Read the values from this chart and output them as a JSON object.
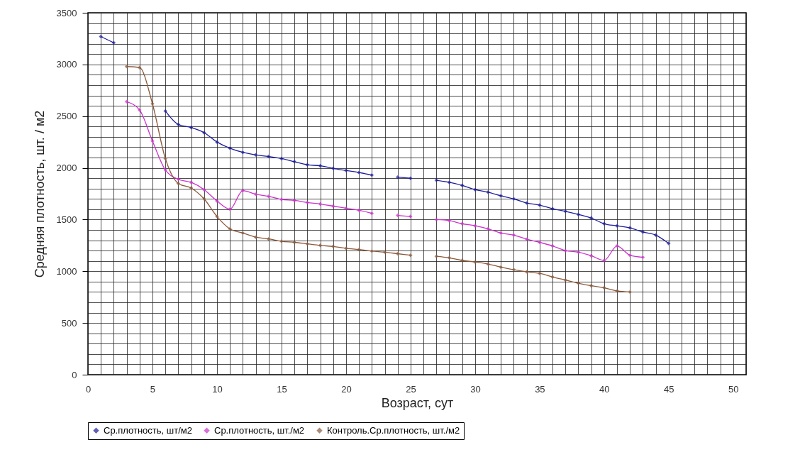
{
  "chart_data": {
    "type": "line",
    "xlabel": "Возраст, сут",
    "ylabel": "Средняя плотность, шт. / м2",
    "x": [
      1,
      2,
      3,
      4,
      5,
      6,
      7,
      8,
      9,
      10,
      11,
      12,
      13,
      14,
      15,
      16,
      17,
      18,
      19,
      20,
      21,
      22,
      23,
      24,
      25,
      26,
      27,
      28,
      29,
      30,
      31,
      32,
      33,
      34,
      35,
      36,
      37,
      38,
      39,
      40,
      41,
      42,
      43,
      44,
      45
    ],
    "series": [
      {
        "name": "Ср.плотность, шт/м2",
        "color": "#1c1c9c",
        "values": [
          3270,
          3210,
          null,
          null,
          null,
          2550,
          2420,
          2390,
          2340,
          2250,
          2190,
          2150,
          2125,
          2110,
          2090,
          2060,
          2030,
          2020,
          1995,
          1975,
          1955,
          1930,
          null,
          1910,
          1900,
          null,
          1880,
          1860,
          1830,
          1790,
          1765,
          1730,
          1700,
          1660,
          1640,
          1605,
          1580,
          1550,
          1515,
          1460,
          1440,
          1420,
          1380,
          1350,
          1270
        ]
      },
      {
        "name": "Ср.плотность, шт./м2",
        "color": "#cc33cc",
        "values": [
          null,
          null,
          2640,
          2560,
          2260,
          1980,
          1890,
          1860,
          1790,
          1680,
          1600,
          1780,
          1745,
          1725,
          1695,
          1685,
          1665,
          1650,
          1630,
          1610,
          1590,
          1560,
          null,
          1540,
          1530,
          null,
          1500,
          1490,
          1460,
          1440,
          1410,
          1370,
          1350,
          1310,
          1280,
          1245,
          1200,
          1185,
          1150,
          1105,
          1245,
          1155,
          1135,
          null,
          null
        ]
      },
      {
        "name": "Контроль.Ср.плотность, шт./м2",
        "color": "#8b5a3c",
        "values": [
          null,
          null,
          2980,
          2970,
          2620,
          2090,
          1850,
          1805,
          1700,
          1530,
          1410,
          1370,
          1330,
          1313,
          1290,
          1280,
          1265,
          1250,
          1240,
          1222,
          1210,
          1195,
          1185,
          1170,
          1155,
          null,
          1145,
          1130,
          1105,
          1090,
          1070,
          1040,
          1015,
          995,
          980,
          945,
          915,
          885,
          860,
          840,
          810,
          800,
          null,
          null,
          null
        ]
      }
    ],
    "xlim": [
      0,
      51
    ],
    "xticks": [
      0,
      5,
      10,
      15,
      20,
      25,
      30,
      35,
      40,
      45,
      50
    ],
    "ylim": [
      0,
      3500
    ],
    "yticks": [
      0,
      500,
      1000,
      1500,
      2000,
      2500,
      3000,
      3500
    ],
    "grid": true,
    "legend": "bottom",
    "marker": "diamond",
    "line_style": "solid"
  }
}
